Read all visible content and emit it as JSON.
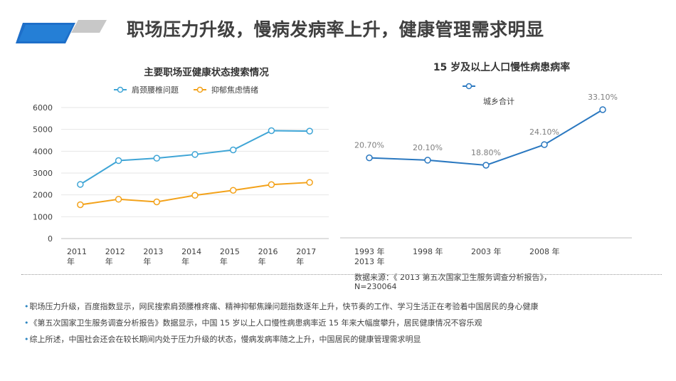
{
  "page": {
    "title": "职场压力升级，慢病发病率上升，健康管理需求明显",
    "source_note": "数据来源：《 2013  第五次国家卫生服务调查分析报告》， N=230064",
    "bullets": [
      "职场压力升级，百度指数显示，网民搜索肩颈腰椎疼痛、精神抑郁焦躁问题指数逐年上升，快节奏的工作、学习生活正在考验着中国居民的身心健康",
      "《第五次国家卫生服务调查分析报告》数据显示，中国 15 岁以上人口慢性病患病率近 15 年来大幅度攀升，居民健康情况不容乐观",
      "综上所述，中国社会还会在较长期间内处于压力升级的状态，慢病发病率随之上升，中国居民的健康管理需求明显"
    ]
  },
  "chart_data": [
    {
      "type": "line",
      "title": "主要职场亚健康状态搜索情况",
      "categories": [
        "2011年",
        "2012年",
        "2013年",
        "2014年",
        "2015年",
        "2016年",
        "2017年"
      ],
      "series": [
        {
          "name": "肩颈腰椎问题",
          "values": [
            2480,
            3570,
            3680,
            3850,
            4060,
            4940,
            4920
          ],
          "color": "#3fa5d6"
        },
        {
          "name": "抑郁焦虑情绪",
          "values": [
            1550,
            1800,
            1680,
            1980,
            2210,
            2470,
            2570
          ],
          "color": "#f3a21a"
        }
      ],
      "ylim": [
        0,
        6000
      ],
      "yticks": [
        "0",
        "1000",
        "2000",
        "3000",
        "4000",
        "5000",
        "6000"
      ],
      "grid": true,
      "legend": "top"
    },
    {
      "type": "line",
      "title": "15 岁及以上人口慢性病患病率",
      "categories": [
        "1993 年",
        "1998 年",
        "2003 年",
        "2008 年",
        "2013 年"
      ],
      "series": [
        {
          "name": "城乡合计",
          "values": [
            20.7,
            20.1,
            18.8,
            24.1,
            33.1
          ],
          "labels": [
            "20.70%",
            "20.10%",
            "18.80%",
            "24.10%",
            "33.10%"
          ],
          "color": "#2a78c0"
        }
      ],
      "grid": false,
      "legend": "top"
    }
  ]
}
